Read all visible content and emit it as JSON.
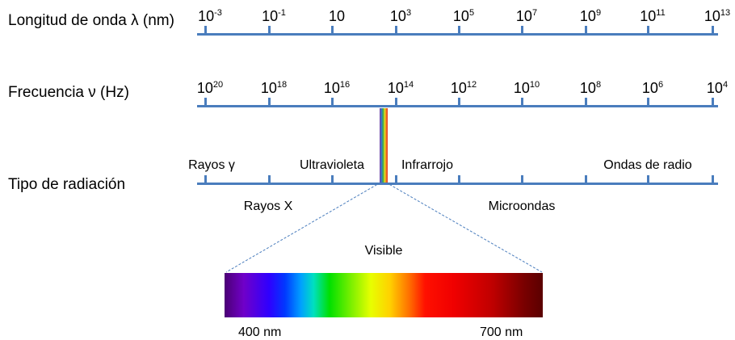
{
  "rows": {
    "wavelength": {
      "label": "Longitud de onda λ (nm)",
      "ticks": [
        "-3",
        "-1",
        "",
        "3",
        "5",
        "7",
        "9",
        "11",
        "13"
      ]
    },
    "frequency": {
      "label": "Frecuencia ν (Hz)",
      "ticks": [
        "20",
        "18",
        "16",
        "14",
        "12",
        "10",
        "8",
        "6",
        "4"
      ]
    },
    "radiation": {
      "label": "Tipo de radiación"
    }
  },
  "tick_base": "10",
  "radiation_types_above": [
    "Rayos γ",
    "Ultravioleta",
    "Infrarrojo",
    "Ondas de radio"
  ],
  "radiation_types_below": [
    "Rayos X",
    "Microondas"
  ],
  "visible": {
    "label": "Visible",
    "min_label": "400 nm",
    "max_label": "700 nm"
  },
  "colors": {
    "axis": "#4a7dbd",
    "zoom_line": "#4a7dbd"
  }
}
